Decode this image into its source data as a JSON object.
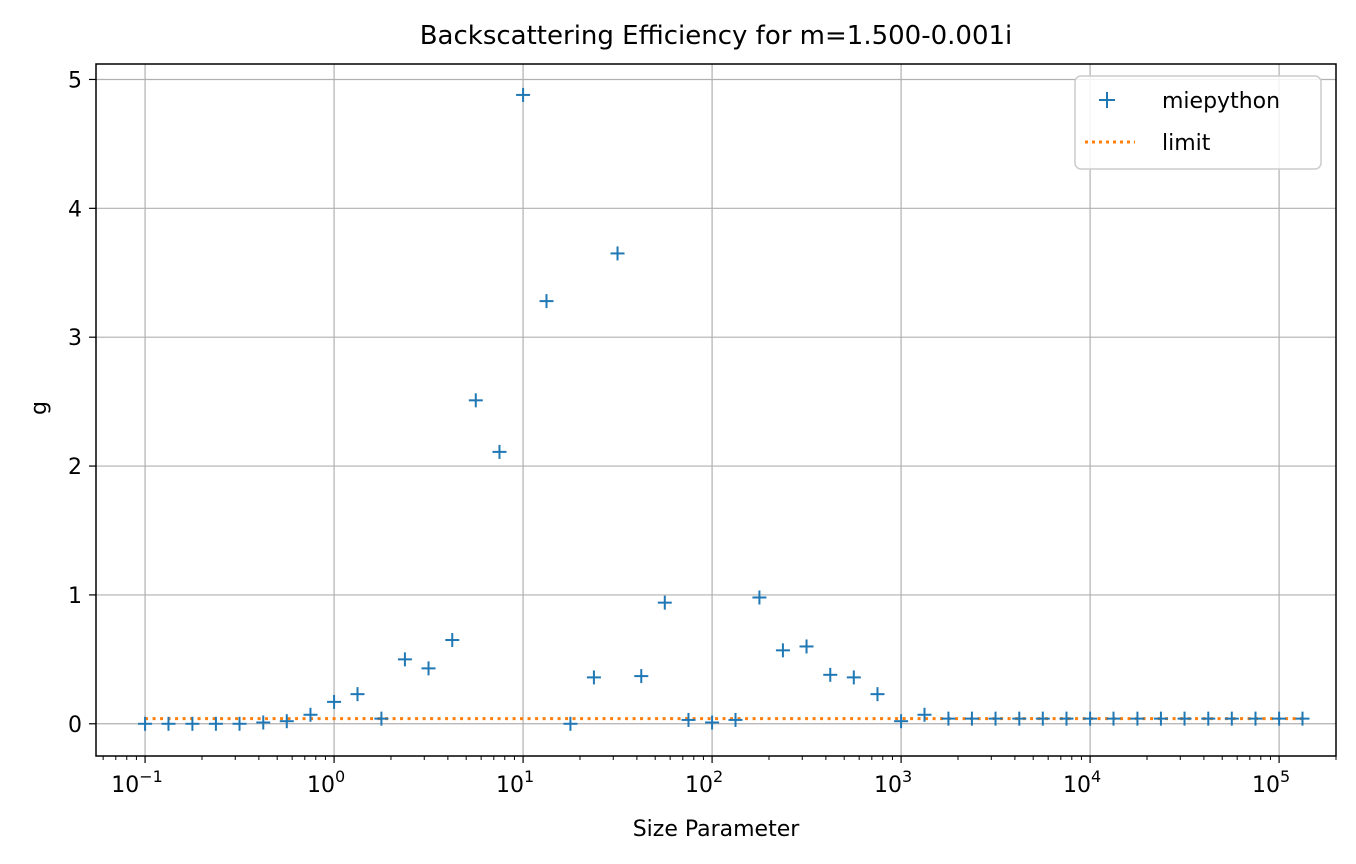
{
  "chart_data": {
    "type": "scatter",
    "title": "Backscattering Efficiency for m=1.500-0.001i",
    "xlabel": "Size Parameter",
    "ylabel": "g",
    "xscale": "log",
    "xlim": [
      0.055,
      200000
    ],
    "ylim": [
      -0.25,
      5.12
    ],
    "xticks": [
      {
        "value": 0.1,
        "base": "10",
        "exp": "−1"
      },
      {
        "value": 1,
        "base": "10",
        "exp": "0"
      },
      {
        "value": 10,
        "base": "10",
        "exp": "1"
      },
      {
        "value": 100,
        "base": "10",
        "exp": "2"
      },
      {
        "value": 1000,
        "base": "10",
        "exp": "3"
      },
      {
        "value": 10000,
        "base": "10",
        "exp": "4"
      },
      {
        "value": 100000,
        "base": "10",
        "exp": "5"
      }
    ],
    "yticks": [
      {
        "value": 0,
        "label": "0"
      },
      {
        "value": 1,
        "label": "1"
      },
      {
        "value": 2,
        "label": "2"
      },
      {
        "value": 3,
        "label": "3"
      },
      {
        "value": 4,
        "label": "4"
      },
      {
        "value": 5,
        "label": "5"
      }
    ],
    "grid": true,
    "legend_position": "top-right",
    "series": [
      {
        "name": "miepython",
        "marker": "+",
        "color": "#1f77b4",
        "points": [
          [
            0.1,
            0.0
          ],
          [
            0.133,
            0.0
          ],
          [
            0.178,
            0.0
          ],
          [
            0.237,
            0.0
          ],
          [
            0.316,
            0.0
          ],
          [
            0.422,
            0.01
          ],
          [
            0.562,
            0.02
          ],
          [
            0.75,
            0.07
          ],
          [
            1.0,
            0.17
          ],
          [
            1.33,
            0.23
          ],
          [
            1.78,
            0.04
          ],
          [
            2.37,
            0.5
          ],
          [
            3.16,
            0.43
          ],
          [
            4.22,
            0.65
          ],
          [
            5.62,
            2.51
          ],
          [
            7.5,
            2.11
          ],
          [
            10.0,
            4.88
          ],
          [
            13.3,
            3.28
          ],
          [
            17.8,
            0.0
          ],
          [
            23.7,
            0.36
          ],
          [
            31.6,
            3.65
          ],
          [
            42.2,
            0.37
          ],
          [
            56.2,
            0.94
          ],
          [
            75.0,
            0.03
          ],
          [
            100,
            0.01
          ],
          [
            133,
            0.03
          ],
          [
            178,
            0.98
          ],
          [
            237,
            0.57
          ],
          [
            316,
            0.6
          ],
          [
            422,
            0.38
          ],
          [
            562,
            0.36
          ],
          [
            750,
            0.23
          ],
          [
            1000,
            0.02
          ],
          [
            1330,
            0.07
          ],
          [
            1780,
            0.04
          ],
          [
            2370,
            0.04
          ],
          [
            3160,
            0.04
          ],
          [
            4220,
            0.04
          ],
          [
            5620,
            0.04
          ],
          [
            7500,
            0.04
          ],
          [
            10000,
            0.04
          ],
          [
            13300,
            0.04
          ],
          [
            17800,
            0.04
          ],
          [
            23700,
            0.04
          ],
          [
            31600,
            0.04
          ],
          [
            42200,
            0.04
          ],
          [
            56200,
            0.04
          ],
          [
            75000,
            0.04
          ],
          [
            100000,
            0.04
          ],
          [
            133000,
            0.04
          ]
        ]
      },
      {
        "name": "limit",
        "line_style": "dotted",
        "color": "#ff7f0e",
        "points": [
          [
            0.1,
            0.04
          ],
          [
            133000,
            0.04
          ]
        ]
      }
    ]
  }
}
